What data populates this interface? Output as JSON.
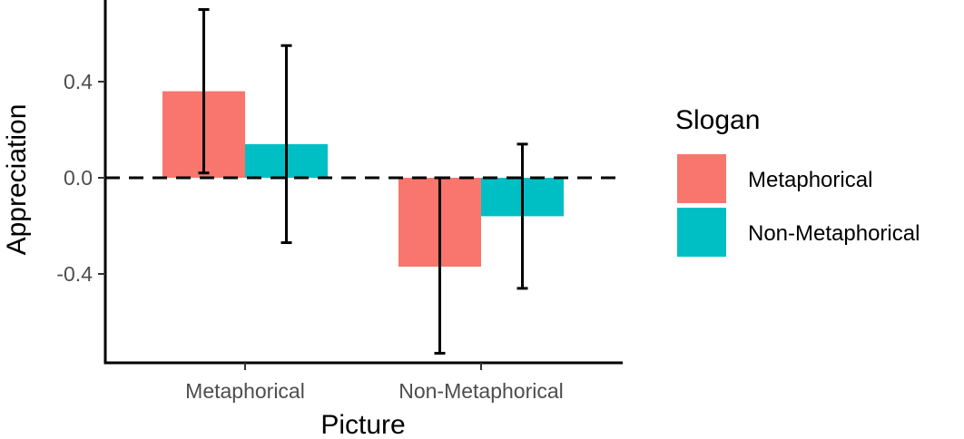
{
  "chart_data": {
    "type": "bar",
    "categories": [
      "Metaphorical",
      "Non-Metaphorical"
    ],
    "series": [
      {
        "name": "Metaphorical",
        "color": "#F8766D",
        "values": [
          0.36,
          -0.37
        ],
        "error_low": [
          0.02,
          -0.73
        ],
        "error_high": [
          0.7,
          0.0
        ]
      },
      {
        "name": "Non-Metaphorical",
        "color": "#00BFC4",
        "values": [
          0.14,
          -0.16
        ],
        "error_low": [
          -0.27,
          -0.46
        ],
        "error_high": [
          0.55,
          0.14
        ]
      }
    ],
    "xlabel": "Picture",
    "ylabel": "Appreciation",
    "yticks": [
      -0.4,
      0.0,
      0.4
    ],
    "ytick_labels": [
      "-0.4",
      "0.0",
      "0.4"
    ],
    "ylim": [
      -0.78,
      0.73
    ],
    "reference_line": {
      "y": 0,
      "style": "dashed"
    },
    "legend": {
      "title": "Slogan",
      "position": "right",
      "entries": [
        "Metaphorical",
        "Non-Metaphorical"
      ]
    },
    "grid": false
  }
}
